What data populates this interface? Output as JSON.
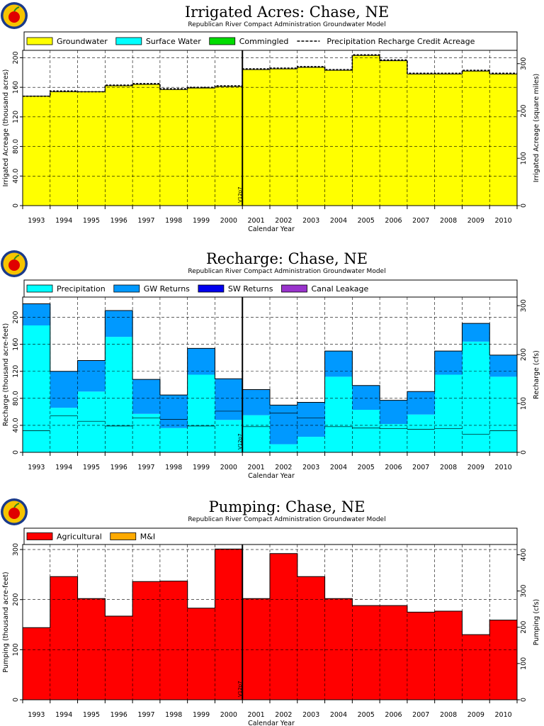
{
  "chart_data": [
    {
      "type": "area",
      "title": "Irrigated Acres: Chase, NE",
      "subtitle": "Republican River Compact Administration Groundwater Model",
      "xlabel": "Calendar Year",
      "ylabel": "Irrigated Acreage (thousand acres)",
      "ylabel_right": "Irrigated Acreage (square miles)",
      "categories": [
        "1993",
        "1994",
        "1995",
        "1996",
        "1997",
        "1998",
        "1999",
        "2000",
        "2001",
        "2002",
        "2003",
        "2004",
        "2005",
        "2006",
        "2007",
        "2008",
        "2009",
        "2010"
      ],
      "ylim": [
        0,
        210
      ],
      "ylim_right": [
        0,
        328.1
      ],
      "yticks": [
        "0",
        "40.0",
        "80.0",
        "120",
        "160",
        "200"
      ],
      "yticks_right": [
        "0",
        "100",
        "200",
        "300"
      ],
      "grid": true,
      "legend_position": "top",
      "version_marker": {
        "label": "V12p7",
        "after_category": "2000"
      },
      "series": [
        {
          "name": "Groundwater",
          "color": "#ffff00",
          "fill": true,
          "values": [
            148,
            154,
            154,
            162,
            164,
            157,
            159,
            161,
            184,
            185,
            187,
            183,
            203,
            196,
            178,
            178,
            182,
            178
          ]
        },
        {
          "name": "Surface Water",
          "color": "#00ffff",
          "fill": true,
          "values": [
            0,
            0,
            0,
            0,
            0,
            0,
            0,
            0,
            0,
            0,
            0,
            0,
            0,
            0,
            0,
            0,
            0,
            0
          ]
        },
        {
          "name": "Commingled",
          "color": "#00dd00",
          "fill": true,
          "values": [
            0,
            0,
            0,
            0,
            0,
            0,
            0,
            0,
            0,
            0,
            0,
            0,
            0,
            0,
            0,
            0,
            0,
            0
          ]
        },
        {
          "name": "Precipitation Recharge Credit Acreage",
          "color": "#000000",
          "dashed": true,
          "values": [
            148,
            155,
            154,
            163,
            165,
            158,
            160,
            162,
            185,
            186,
            188,
            184,
            204,
            197,
            179,
            179,
            183,
            179
          ]
        }
      ]
    },
    {
      "type": "area",
      "title": "Recharge: Chase, NE",
      "subtitle": "Republican River Compact Administration Groundwater Model",
      "xlabel": "Calendar Year",
      "ylabel": "Recharge (thousand acre-feet)",
      "ylabel_right": "Recharge (cfs)",
      "categories": [
        "1993",
        "1994",
        "1995",
        "1996",
        "1997",
        "1998",
        "1999",
        "2000",
        "2001",
        "2002",
        "2003",
        "2004",
        "2005",
        "2006",
        "2007",
        "2008",
        "2009",
        "2010"
      ],
      "ylim": [
        0,
        230
      ],
      "ylim_right": [
        0,
        317.6
      ],
      "yticks": [
        "0",
        "40.0",
        "80.0",
        "120",
        "160",
        "200"
      ],
      "yticks_right": [
        "0",
        "100",
        "200",
        "300"
      ],
      "grid": true,
      "legend_position": "top",
      "version_marker": {
        "label": "V12p7",
        "after_category": "2000"
      },
      "series": [
        {
          "name": "Precipitation",
          "color": "#00ffff",
          "fill": true,
          "values": [
            188,
            66,
            90,
            171,
            57,
            36,
            115,
            48,
            55,
            12,
            23,
            112,
            63,
            42,
            56,
            115,
            164,
            112
          ]
        },
        {
          "name": "GW Returns",
          "color": "#0099ff",
          "fill": true,
          "values": [
            32,
            54,
            46,
            39,
            51,
            49,
            39,
            61,
            38,
            58,
            51,
            38,
            36,
            35,
            34,
            35,
            27,
            32
          ]
        },
        {
          "name": "SW Returns",
          "color": "#0000ee",
          "fill": true,
          "values": [
            0,
            0,
            0,
            0,
            0,
            0,
            0,
            0,
            0,
            0,
            0,
            0,
            0,
            0,
            0,
            0,
            0,
            0
          ]
        },
        {
          "name": "Canal Leakage",
          "color": "#9933cc",
          "fill": true,
          "values": [
            0,
            0,
            0,
            0,
            0,
            0,
            0,
            0,
            0,
            0,
            0,
            0,
            0,
            0,
            0,
            0,
            0,
            0
          ]
        }
      ]
    },
    {
      "type": "area",
      "title": "Pumping: Chase, NE",
      "subtitle": "Republican River Compact Administration Groundwater Model",
      "xlabel": "Calendar Year",
      "ylabel": "Pumping (thousand acre-feet)",
      "ylabel_right": "Pumping (cfs)",
      "categories": [
        "1993",
        "1994",
        "1995",
        "1996",
        "1997",
        "1998",
        "1999",
        "2000",
        "2001",
        "2002",
        "2003",
        "2004",
        "2005",
        "2006",
        "2007",
        "2008",
        "2009",
        "2010"
      ],
      "ylim": [
        0,
        310
      ],
      "ylim_right": [
        0,
        428.2
      ],
      "yticks": [
        "0",
        "100",
        "200",
        "300"
      ],
      "yticks_right": [
        "0",
        "100",
        "200",
        "300",
        "400"
      ],
      "grid": true,
      "legend_position": "top",
      "version_marker": {
        "label": "V12p7",
        "after_category": "2000"
      },
      "series": [
        {
          "name": "Agricultural",
          "color": "#ff0000",
          "fill": true,
          "values": [
            144,
            246,
            202,
            167,
            236,
            237,
            183,
            301,
            202,
            292,
            246,
            202,
            188,
            188,
            175,
            177,
            130,
            159
          ]
        },
        {
          "name": "M&I",
          "color": "#ffaa00",
          "fill": true,
          "values": [
            0,
            0,
            0,
            0,
            0,
            0,
            0,
            0,
            0,
            0,
            0,
            0,
            0,
            0,
            0,
            0,
            0,
            0
          ]
        }
      ]
    }
  ]
}
